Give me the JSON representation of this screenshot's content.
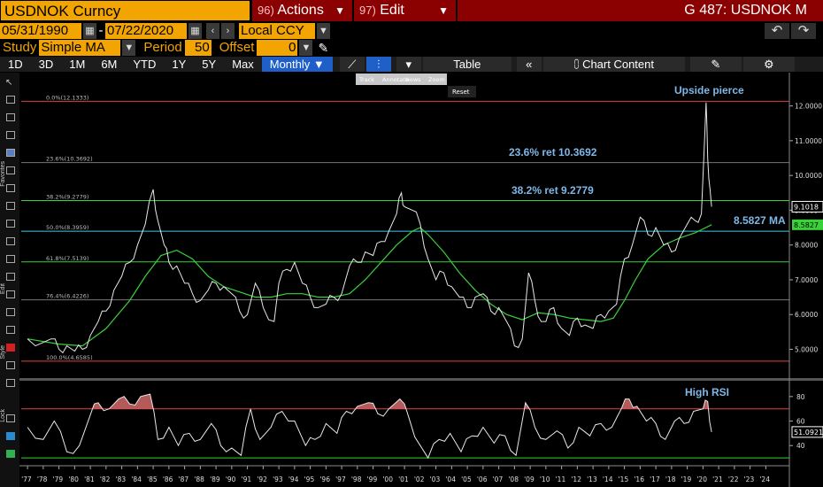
{
  "header": {
    "ticker": "USDNOK Curncy",
    "actions_num": "96)",
    "actions_label": "Actions",
    "edit_num": "97)",
    "edit_label": "Edit",
    "window_title": "G 487: USDNOK M"
  },
  "date_range": {
    "start": "05/31/1990",
    "separator": "-",
    "end": "07/22/2020",
    "currency": "Local CCY"
  },
  "study": {
    "label": "Study",
    "value": "Simple MA",
    "period_label": "Period",
    "period_value": "50",
    "offset_label": "Offset",
    "offset_value": "0"
  },
  "toolbar": {
    "timeframes": [
      "1D",
      "3D",
      "1M",
      "6M",
      "YTD",
      "1Y",
      "5Y",
      "Max"
    ],
    "frequency": "Monthly",
    "table_label": "Table",
    "chart_content_label": "Chart Content"
  },
  "tooltip_menu": {
    "items": [
      "Track",
      "Annotate",
      "News",
      "Zoom"
    ],
    "reset_label": "Reset"
  },
  "side_labels": {
    "favorites": "Favorites",
    "edit": "Edit",
    "style": "Style",
    "lock": "Lock"
  },
  "chart_data": [
    {
      "type": "line",
      "series": [
        {
          "name": "USDNOK",
          "values": [
            [
              1977.0,
              5.3
            ],
            [
              1978.0,
              5.2
            ],
            [
              1978.5,
              5.3
            ],
            [
              1979.0,
              5.0
            ],
            [
              1979.5,
              5.1
            ],
            [
              1980.0,
              4.95
            ],
            [
              1980.5,
              5.0
            ],
            [
              1981.0,
              5.4
            ],
            [
              1981.5,
              5.8
            ],
            [
              1982.0,
              6.1
            ],
            [
              1982.5,
              6.7
            ],
            [
              1983.0,
              7.1
            ],
            [
              1983.5,
              7.5
            ],
            [
              1984.0,
              8.0
            ],
            [
              1984.5,
              8.6
            ],
            [
              1985.0,
              9.6
            ],
            [
              1985.3,
              8.7
            ],
            [
              1985.7,
              8.0
            ],
            [
              1986.0,
              7.5
            ],
            [
              1986.5,
              7.4
            ],
            [
              1987.0,
              6.9
            ],
            [
              1987.5,
              6.6
            ],
            [
              1988.0,
              6.4
            ],
            [
              1988.5,
              6.7
            ],
            [
              1989.0,
              6.9
            ],
            [
              1989.5,
              6.8
            ],
            [
              1990.0,
              6.6
            ],
            [
              1990.5,
              6.1
            ],
            [
              1991.0,
              6.0
            ],
            [
              1991.5,
              6.9
            ],
            [
              1992.0,
              6.2
            ],
            [
              1992.7,
              5.8
            ],
            [
              1993.0,
              6.9
            ],
            [
              1993.5,
              7.3
            ],
            [
              1994.0,
              7.5
            ],
            [
              1994.5,
              6.9
            ],
            [
              1995.0,
              6.5
            ],
            [
              1995.5,
              6.2
            ],
            [
              1996.0,
              6.3
            ],
            [
              1996.5,
              6.5
            ],
            [
              1997.0,
              6.6
            ],
            [
              1997.5,
              7.4
            ],
            [
              1998.0,
              7.5
            ],
            [
              1998.5,
              7.8
            ],
            [
              1999.0,
              7.7
            ],
            [
              1999.5,
              8.1
            ],
            [
              2000.0,
              8.4
            ],
            [
              2000.5,
              8.9
            ],
            [
              2000.8,
              9.5
            ],
            [
              2001.0,
              9.1
            ],
            [
              2001.5,
              9.0
            ],
            [
              2002.0,
              8.6
            ],
            [
              2002.5,
              7.6
            ],
            [
              2003.0,
              7.0
            ],
            [
              2003.5,
              7.2
            ],
            [
              2004.0,
              6.8
            ],
            [
              2004.5,
              6.5
            ],
            [
              2005.0,
              6.2
            ],
            [
              2005.5,
              6.5
            ],
            [
              2006.0,
              6.6
            ],
            [
              2006.5,
              6.1
            ],
            [
              2007.0,
              6.2
            ],
            [
              2007.5,
              5.8
            ],
            [
              2008.0,
              5.1
            ],
            [
              2008.5,
              5.3
            ],
            [
              2008.9,
              7.2
            ],
            [
              2009.3,
              6.4
            ],
            [
              2009.7,
              5.8
            ],
            [
              2010.0,
              5.8
            ],
            [
              2010.5,
              6.2
            ],
            [
              2011.0,
              5.6
            ],
            [
              2011.5,
              5.4
            ],
            [
              2012.0,
              5.9
            ],
            [
              2012.5,
              5.7
            ],
            [
              2013.0,
              5.6
            ],
            [
              2013.5,
              6.0
            ],
            [
              2014.0,
              6.1
            ],
            [
              2014.5,
              6.3
            ],
            [
              2015.0,
              7.6
            ],
            [
              2015.5,
              8.0
            ],
            [
              2016.0,
              8.8
            ],
            [
              2016.5,
              8.3
            ],
            [
              2017.0,
              8.5
            ],
            [
              2017.5,
              8.0
            ],
            [
              2018.0,
              7.8
            ],
            [
              2018.5,
              8.2
            ],
            [
              2019.0,
              8.6
            ],
            [
              2019.5,
              8.7
            ],
            [
              2019.9,
              8.9
            ],
            [
              2020.2,
              12.1
            ],
            [
              2020.3,
              10.5
            ],
            [
              2020.45,
              9.6
            ],
            [
              2020.55,
              9.1018
            ]
          ]
        },
        {
          "name": "MA",
          "values": [
            [
              1977.0,
              5.3
            ],
            [
              1979.0,
              5.15
            ],
            [
              1980.5,
              5.1
            ],
            [
              1982.0,
              5.6
            ],
            [
              1983.5,
              6.4
            ],
            [
              1984.5,
              7.1
            ],
            [
              1985.5,
              7.7
            ],
            [
              1986.5,
              7.85
            ],
            [
              1987.5,
              7.6
            ],
            [
              1988.5,
              7.1
            ],
            [
              1989.5,
              6.8
            ],
            [
              1990.5,
              6.65
            ],
            [
              1991.5,
              6.5
            ],
            [
              1992.5,
              6.5
            ],
            [
              1993.5,
              6.6
            ],
            [
              1994.5,
              6.6
            ],
            [
              1995.5,
              6.5
            ],
            [
              1996.5,
              6.5
            ],
            [
              1997.5,
              6.6
            ],
            [
              1998.5,
              7.0
            ],
            [
              1999.5,
              7.5
            ],
            [
              2000.5,
              8.0
            ],
            [
              2001.5,
              8.4
            ],
            [
              2002.0,
              8.5
            ],
            [
              2002.5,
              8.3
            ],
            [
              2003.5,
              7.8
            ],
            [
              2004.5,
              7.2
            ],
            [
              2005.5,
              6.7
            ],
            [
              2006.5,
              6.3
            ],
            [
              2007.5,
              6.0
            ],
            [
              2008.5,
              5.85
            ],
            [
              2009.5,
              6.05
            ],
            [
              2010.5,
              6.0
            ],
            [
              2011.5,
              5.9
            ],
            [
              2012.5,
              5.85
            ],
            [
              2013.5,
              5.8
            ],
            [
              2014.3,
              5.9
            ],
            [
              2015.0,
              6.4
            ],
            [
              2015.7,
              7.0
            ],
            [
              2016.5,
              7.6
            ],
            [
              2017.5,
              8.0
            ],
            [
              2018.5,
              8.2
            ],
            [
              2019.5,
              8.35
            ],
            [
              2020.55,
              8.5827
            ]
          ]
        }
      ],
      "xlim": [
        1976.6,
        2025.5
      ],
      "ylim": [
        4.3,
        12.5
      ],
      "y_ticks": [
        "5.0000",
        "6.0000",
        "7.0000",
        "8.0000",
        "9.0000",
        "10.0000",
        "11.0000",
        "12.0000"
      ],
      "x_ticks": [
        "'77",
        "'78",
        "'79",
        "'80",
        "'81",
        "'82",
        "'83",
        "'84",
        "'85",
        "'86",
        "'87",
        "'88",
        "'89",
        "'90",
        "'91",
        "'92",
        "'93",
        "'94",
        "'95",
        "'96",
        "'97",
        "'98",
        "'99",
        "'00",
        "'01",
        "'02",
        "'03",
        "'04",
        "'05",
        "'06",
        "'07",
        "'08",
        "'09",
        "'10",
        "'11",
        "'12",
        "'13",
        "'14",
        "'15",
        "'16",
        "'17",
        "'18",
        "'19",
        "'20",
        "'21",
        "'22",
        "'23",
        "'24"
      ],
      "fib_levels": [
        {
          "label": "0.0%(12.1333)",
          "value": 12.1333,
          "color": "#e04040"
        },
        {
          "label": "23.6%(10.3692)",
          "value": 10.3692,
          "color": "#777777"
        },
        {
          "label": "38.2%(9.2779)",
          "value": 9.2779,
          "color": "#39d239"
        },
        {
          "label": "50.0%(8.3959)",
          "value": 8.3959,
          "color": "#42c8e8"
        },
        {
          "label": "61.8%(7.5139)",
          "value": 7.5139,
          "color": "#39d239"
        },
        {
          "label": "76.4%(6.4226)",
          "value": 6.4226,
          "color": "#777777"
        },
        {
          "label": "100.0%(4.6585)",
          "value": 4.6585,
          "color": "#e04040"
        }
      ],
      "annotations": {
        "upside": "Upside pierce",
        "ret236": "23.6% ret 10.3692",
        "ret382": "38.2% ret 9.2779",
        "ma": "8.5827 MA"
      },
      "last_price": "9.1018",
      "last_ma": "8.5827"
    },
    {
      "type": "line",
      "series": [
        {
          "name": "RSI",
          "values": [
            [
              1977.0,
              55
            ],
            [
              1978.0,
              45
            ],
            [
              1978.7,
              60
            ],
            [
              1979.5,
              35
            ],
            [
              1980.3,
              40
            ],
            [
              1981.0,
              65
            ],
            [
              1981.5,
              75
            ],
            [
              1982.2,
              70
            ],
            [
              1982.8,
              78
            ],
            [
              1983.5,
              74
            ],
            [
              1984.2,
              80
            ],
            [
              1984.8,
              82
            ],
            [
              1985.3,
              45
            ],
            [
              1986.0,
              55
            ],
            [
              1986.6,
              40
            ],
            [
              1987.3,
              50
            ],
            [
              1988.0,
              45
            ],
            [
              1988.7,
              58
            ],
            [
              1989.3,
              40
            ],
            [
              1990.0,
              38
            ],
            [
              1990.6,
              32
            ],
            [
              1991.2,
              70
            ],
            [
              1991.8,
              45
            ],
            [
              1992.5,
              55
            ],
            [
              1993.2,
              68
            ],
            [
              1994.0,
              60
            ],
            [
              1994.7,
              40
            ],
            [
              1995.3,
              45
            ],
            [
              1996.0,
              58
            ],
            [
              1996.7,
              50
            ],
            [
              1997.3,
              68
            ],
            [
              1998.0,
              72
            ],
            [
              1998.7,
              75
            ],
            [
              1999.3,
              66
            ],
            [
              2000.0,
              70
            ],
            [
              2000.7,
              78
            ],
            [
              2001.3,
              62
            ],
            [
              2002.0,
              40
            ],
            [
              2002.5,
              30
            ],
            [
              2003.2,
              45
            ],
            [
              2003.9,
              50
            ],
            [
              2004.6,
              35
            ],
            [
              2005.3,
              48
            ],
            [
              2006.0,
              55
            ],
            [
              2006.7,
              42
            ],
            [
              2007.4,
              48
            ],
            [
              2008.1,
              32
            ],
            [
              2008.7,
              75
            ],
            [
              2009.3,
              55
            ],
            [
              2010.0,
              45
            ],
            [
              2010.7,
              52
            ],
            [
              2011.4,
              38
            ],
            [
              2012.1,
              55
            ],
            [
              2012.8,
              48
            ],
            [
              2013.5,
              58
            ],
            [
              2014.2,
              55
            ],
            [
              2014.8,
              70
            ],
            [
              2015.3,
              78
            ],
            [
              2015.8,
              72
            ],
            [
              2016.4,
              60
            ],
            [
              2017.0,
              58
            ],
            [
              2017.6,
              45
            ],
            [
              2018.2,
              60
            ],
            [
              2018.8,
              58
            ],
            [
              2019.4,
              68
            ],
            [
              2020.0,
              70
            ],
            [
              2020.3,
              76
            ],
            [
              2020.55,
              51.0921
            ]
          ]
        }
      ],
      "ylim": [
        25,
        90
      ],
      "y_ticks": [
        "40",
        "60",
        "80"
      ],
      "bands": [
        {
          "value": 70,
          "color": "#e04040"
        },
        {
          "value": 30,
          "color": "#39d239"
        }
      ],
      "annotations": {
        "high_rsi": "High RSI"
      },
      "last_value": "51.0921"
    }
  ]
}
